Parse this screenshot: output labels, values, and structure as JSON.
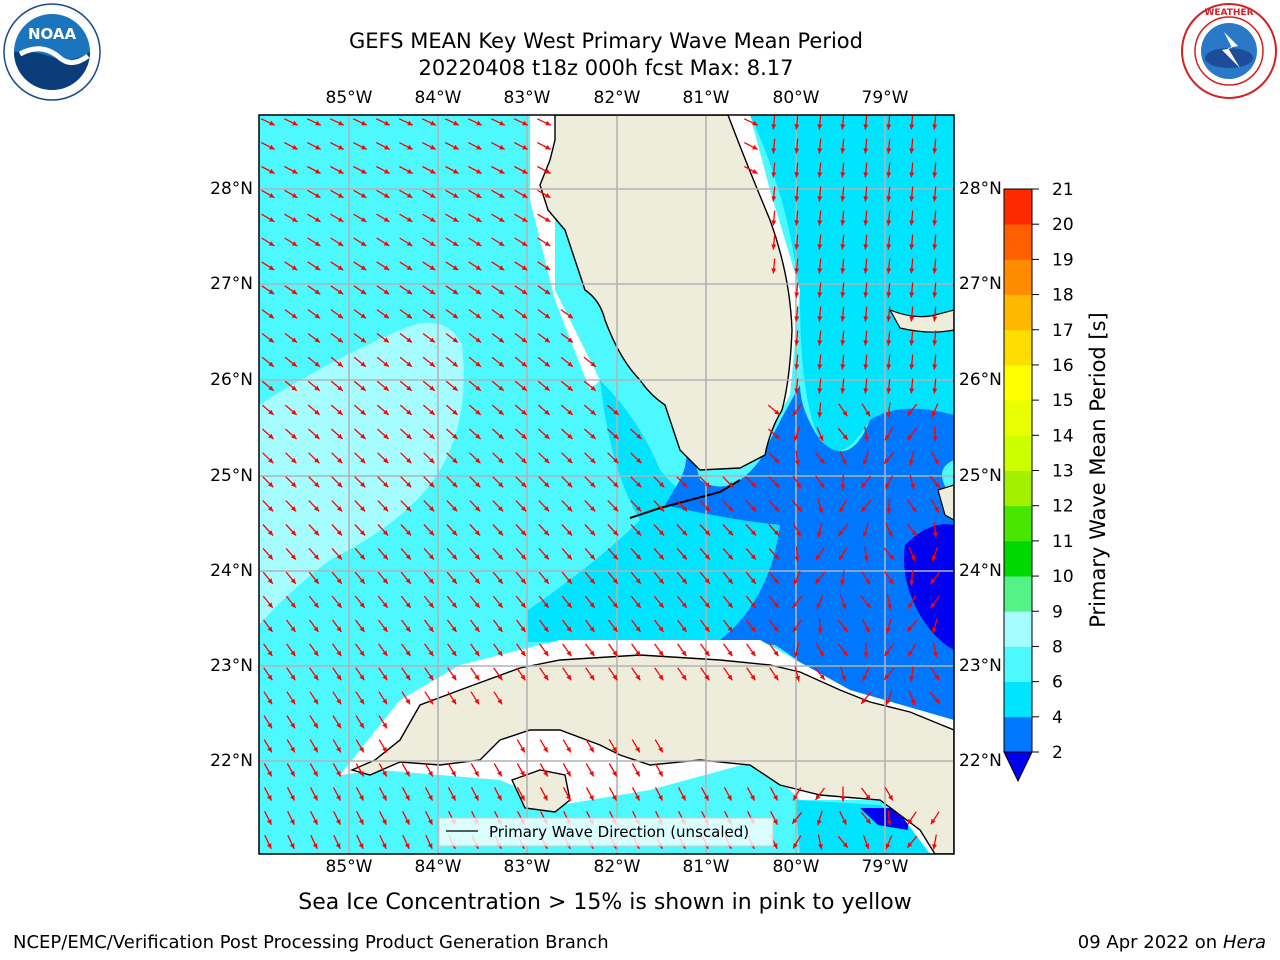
{
  "title": {
    "line1": "GEFS MEAN Key West Primary Wave Mean Period",
    "line2": "20220408 t18z 000h fcst   Max: 8.17"
  },
  "logos": {
    "left": {
      "name": "noaa-logo",
      "text": "NOAA",
      "ring_text": "NATIONAL OCEANIC AND ATMOSPHERIC ADMINISTRATION · U.S. DEPARTMENT OF COMMERCE"
    },
    "right": {
      "name": "nws-logo",
      "ring_text": "NATIONAL WEATHER SERVICE"
    }
  },
  "map": {
    "lon_labels": [
      "85°W",
      "84°W",
      "83°W",
      "82°W",
      "81°W",
      "80°W",
      "79°W"
    ],
    "lat_labels": [
      "28°N",
      "27°N",
      "26°N",
      "25°N",
      "24°N",
      "23°N",
      "22°N"
    ],
    "legend": "Primary Wave Direction (unscaled)",
    "caption": "Sea Ice Concentration > 15% is shown in pink to yellow",
    "colors": {
      "land": "#eeeddc",
      "coast": "#000000",
      "grid": "#b3b3b3",
      "arrow": "#ff0000"
    }
  },
  "colorbar": {
    "label": "Primary Wave Mean Period [s]",
    "ticks": [
      "2",
      "4",
      "6",
      "8",
      "9",
      "10",
      "11",
      "12",
      "13",
      "14",
      "15",
      "16",
      "17",
      "18",
      "19",
      "20",
      "21"
    ],
    "colors": [
      "#0077ff",
      "#00e5ff",
      "#4df9ff",
      "#a6fdff",
      "#54f287",
      "#00d900",
      "#49e600",
      "#a3f000",
      "#ccff00",
      "#e8ff00",
      "#ffff00",
      "#ffdd00",
      "#ffb700",
      "#ff8c00",
      "#ff5f00",
      "#ff2a00"
    ],
    "extend_color": "#0000f0"
  },
  "chart_data": {
    "type": "heatmap",
    "title": "GEFS MEAN Key West Primary Wave Mean Period",
    "subtitle": "20220408 t18z 000h fcst   Max: 8.17",
    "max_value": 8.17,
    "units": "s",
    "xlabel": "",
    "ylabel": "",
    "lon_range": [
      -86.0,
      -78.3
    ],
    "lat_range": [
      21.0,
      28.8
    ],
    "colorbar_label": "Primary Wave Mean Period [s]",
    "colorbar_levels": [
      2,
      4,
      6,
      8,
      9,
      10,
      11,
      12,
      13,
      14,
      15,
      16,
      17,
      18,
      19,
      20,
      21
    ],
    "vector_field": "Primary Wave Direction (unscaled)"
  },
  "footer": {
    "left": "NCEP/EMC/Verification Post Processing Product Generation Branch",
    "right_date": "09 Apr 2022 on ",
    "right_host": "Hera"
  }
}
